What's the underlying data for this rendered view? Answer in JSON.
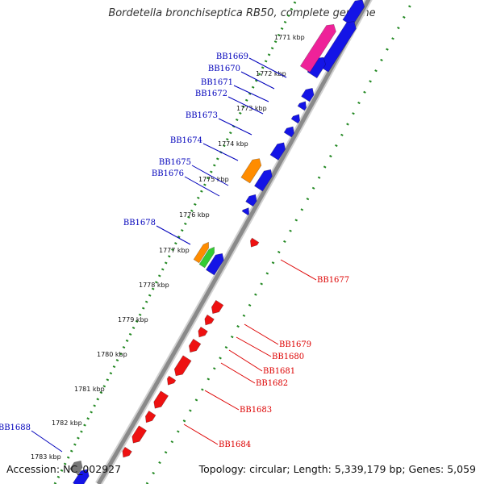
{
  "title": "Bordetella bronchiseptica RB50, complete genome",
  "accession": "Accession: NC_002927",
  "topology": "Topology: circular; Length: 5,339,179 bp; Genes: 5,059",
  "colors": {
    "plus_strand_label": "#0000bb",
    "minus_strand_label": "#dd0000",
    "backbone": "#8a8a8a",
    "dotted_track": "#228822",
    "blue_gene": "#1414e6",
    "red_gene": "#ee1111",
    "orange_gene": "#ff8c00",
    "green_gene": "#33cc33",
    "magenta_gene": "#ee2299",
    "grey_gene": "#777777"
  },
  "ticks": [
    "1771 kbp",
    "1772 kbp",
    "1773 kbp",
    "1774 kbp",
    "1775 kbp",
    "1776 kbp",
    "1777 kbp",
    "1778 kbp",
    "1779 kbp",
    "1780 kbp",
    "1781 kbp",
    "1782 kbp",
    "1783 kbp"
  ],
  "genes_plus": [
    "BB1669",
    "BB1670",
    "BB1671",
    "BB1672",
    "BB1673",
    "BB1674",
    "BB1675",
    "BB1676",
    "BB1678",
    "BB1688"
  ],
  "genes_minus": [
    "BB1677",
    "BB1679",
    "BB1680",
    "BB1681",
    "BB1682",
    "BB1683",
    "BB1684"
  ]
}
